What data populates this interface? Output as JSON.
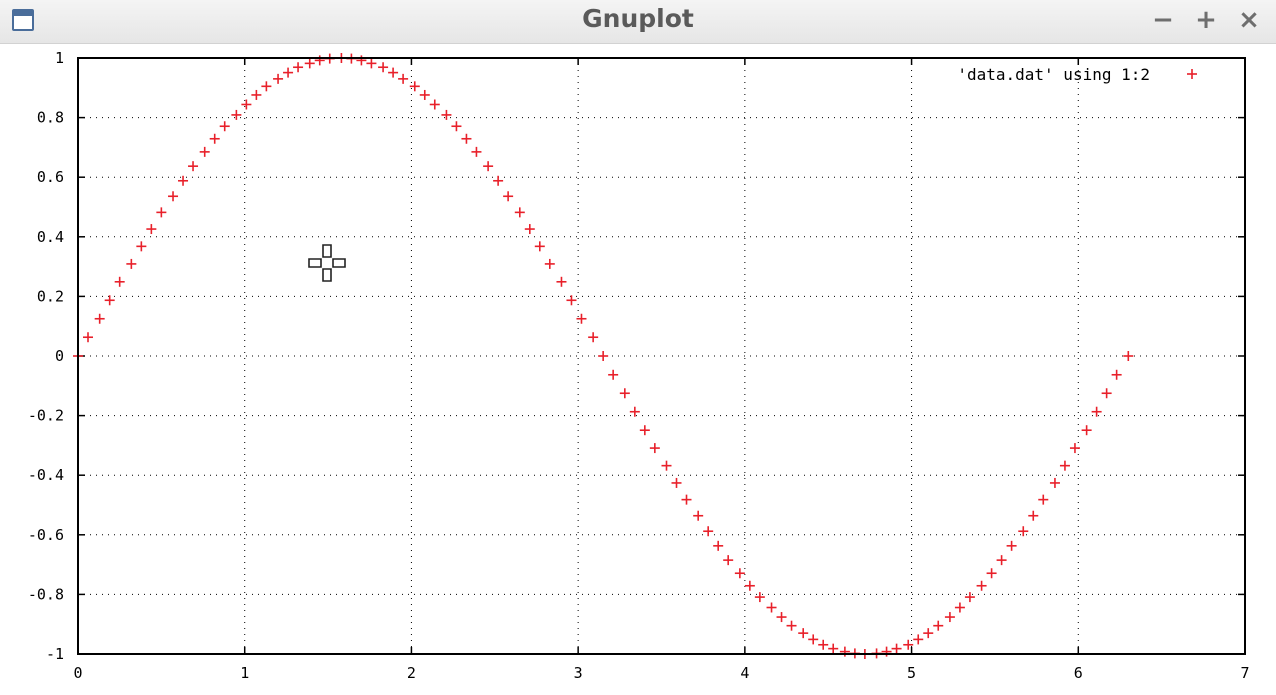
{
  "window": {
    "title": "Gnuplot",
    "icon": "window-app-icon",
    "controls": {
      "minimize": "−",
      "maximize": "+",
      "close": "×"
    }
  },
  "chart_data": {
    "type": "scatter",
    "title": "",
    "xlabel": "",
    "ylabel": "",
    "xlim": [
      0,
      7
    ],
    "ylim": [
      -1,
      1
    ],
    "x_ticks": [
      "0",
      "1",
      "2",
      "3",
      "4",
      "5",
      "6",
      "7"
    ],
    "y_ticks": [
      "1",
      "0.8",
      "0.6",
      "0.4",
      "0.2",
      "0",
      "-0.2",
      "-0.4",
      "-0.6",
      "-0.8",
      "-1"
    ],
    "grid": true,
    "legend_position": "top-right",
    "series": [
      {
        "name": "'data.dat' using 1:2",
        "color": "#e8202a",
        "marker": "+",
        "x": [
          0.0,
          0.06,
          0.13,
          0.19,
          0.25,
          0.32,
          0.38,
          0.44,
          0.5,
          0.57,
          0.63,
          0.69,
          0.76,
          0.82,
          0.88,
          0.95,
          1.01,
          1.07,
          1.13,
          1.2,
          1.26,
          1.32,
          1.39,
          1.45,
          1.51,
          1.58,
          1.64,
          1.7,
          1.76,
          1.83,
          1.89,
          1.95,
          2.02,
          2.08,
          2.14,
          2.21,
          2.27,
          2.33,
          2.39,
          2.46,
          2.52,
          2.58,
          2.65,
          2.71,
          2.77,
          2.83,
          2.9,
          2.96,
          3.02,
          3.09,
          3.15,
          3.21,
          3.28,
          3.34,
          3.4,
          3.46,
          3.53,
          3.59,
          3.65,
          3.72,
          3.78,
          3.84,
          3.9,
          3.97,
          4.03,
          4.09,
          4.16,
          4.22,
          4.28,
          4.35,
          4.41,
          4.47,
          4.53,
          4.6,
          4.66,
          4.72,
          4.79,
          4.85,
          4.91,
          4.98,
          5.04,
          5.1,
          5.16,
          5.23,
          5.29,
          5.35,
          5.42,
          5.48,
          5.54,
          5.6,
          5.67,
          5.73,
          5.79,
          5.86,
          5.92,
          5.98,
          6.05,
          6.11,
          6.17,
          6.23,
          6.3
        ],
        "y": [
          0.0,
          0.063,
          0.125,
          0.187,
          0.249,
          0.309,
          0.368,
          0.426,
          0.482,
          0.536,
          0.588,
          0.637,
          0.685,
          0.729,
          0.771,
          0.809,
          0.844,
          0.876,
          0.905,
          0.93,
          0.951,
          0.969,
          0.982,
          0.992,
          0.998,
          1.0,
          0.998,
          0.992,
          0.982,
          0.969,
          0.951,
          0.93,
          0.905,
          0.876,
          0.844,
          0.809,
          0.771,
          0.729,
          0.685,
          0.637,
          0.588,
          0.536,
          0.482,
          0.426,
          0.368,
          0.309,
          0.249,
          0.187,
          0.125,
          0.063,
          0.0,
          -0.063,
          -0.125,
          -0.187,
          -0.249,
          -0.309,
          -0.368,
          -0.426,
          -0.482,
          -0.536,
          -0.588,
          -0.637,
          -0.685,
          -0.729,
          -0.771,
          -0.809,
          -0.844,
          -0.876,
          -0.905,
          -0.93,
          -0.951,
          -0.969,
          -0.982,
          -0.992,
          -0.998,
          -1.0,
          -0.998,
          -0.992,
          -0.982,
          -0.969,
          -0.951,
          -0.93,
          -0.905,
          -0.876,
          -0.844,
          -0.809,
          -0.771,
          -0.729,
          -0.685,
          -0.637,
          -0.588,
          -0.536,
          -0.482,
          -0.426,
          -0.368,
          -0.309,
          -0.249,
          -0.187,
          -0.125,
          -0.063,
          0.0
        ]
      }
    ]
  },
  "overlay": {
    "cursor_icon": "move-crosshair-cursor-icon"
  }
}
